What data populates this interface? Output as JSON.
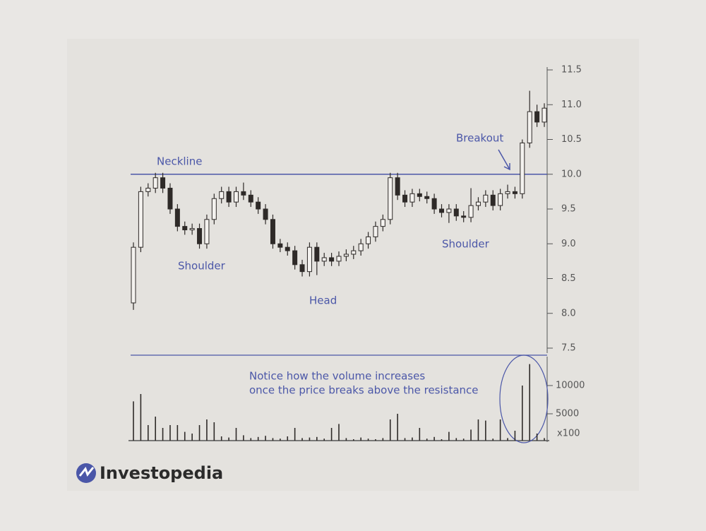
{
  "chart_data": {
    "type": "candlestick",
    "series": {
      "open": [
        8.15,
        8.95,
        9.75,
        9.8,
        9.95,
        9.8,
        9.5,
        9.25,
        9.2,
        9.22,
        9.0,
        9.35,
        9.65,
        9.75,
        9.6,
        9.75,
        9.7,
        9.6,
        9.5,
        9.35,
        9.0,
        8.95,
        8.9,
        8.7,
        8.6,
        8.95,
        8.75,
        8.8,
        8.75,
        8.82,
        8.85,
        8.9,
        9.0,
        9.1,
        9.25,
        9.35,
        9.95,
        9.7,
        9.6,
        9.72,
        9.68,
        9.65,
        9.5,
        9.45,
        9.5,
        9.4,
        9.38,
        9.55,
        9.6,
        9.7,
        9.55,
        9.72,
        9.75,
        9.72,
        10.45,
        10.9,
        10.75
      ],
      "high": [
        9.02,
        9.82,
        9.87,
        10.02,
        10.02,
        9.87,
        9.57,
        9.32,
        9.29,
        9.29,
        9.42,
        9.72,
        9.82,
        9.82,
        9.82,
        9.88,
        9.77,
        9.67,
        9.57,
        9.42,
        9.07,
        9.02,
        8.97,
        8.77,
        9.02,
        9.02,
        8.87,
        8.87,
        8.89,
        8.92,
        8.97,
        9.07,
        9.17,
        9.32,
        9.42,
        10.02,
        10.02,
        9.77,
        9.79,
        9.79,
        9.75,
        9.72,
        9.57,
        9.57,
        9.57,
        9.47,
        9.8,
        9.67,
        9.77,
        9.77,
        9.79,
        9.85,
        9.82,
        10.5,
        11.2,
        11.0,
        11.02
      ],
      "low": [
        8.05,
        8.88,
        9.68,
        9.73,
        9.73,
        9.43,
        9.18,
        9.13,
        9.13,
        8.93,
        8.93,
        9.28,
        9.58,
        9.53,
        9.53,
        9.63,
        9.53,
        9.43,
        9.28,
        8.93,
        8.88,
        8.83,
        8.63,
        8.53,
        8.53,
        8.55,
        8.68,
        8.68,
        8.68,
        8.75,
        8.78,
        8.83,
        8.93,
        9.03,
        9.18,
        9.28,
        9.63,
        9.53,
        9.53,
        9.61,
        9.58,
        9.43,
        9.38,
        9.3,
        9.33,
        9.31,
        9.31,
        9.48,
        9.53,
        9.48,
        9.48,
        9.65,
        9.65,
        9.65,
        10.38,
        10.68,
        10.68
      ],
      "close": [
        8.95,
        9.75,
        9.8,
        9.95,
        9.8,
        9.5,
        9.25,
        9.2,
        9.22,
        9.0,
        9.35,
        9.65,
        9.75,
        9.6,
        9.75,
        9.7,
        9.6,
        9.5,
        9.35,
        9.0,
        8.95,
        8.9,
        8.7,
        8.6,
        8.95,
        8.75,
        8.8,
        8.75,
        8.82,
        8.85,
        8.9,
        9.0,
        9.1,
        9.25,
        9.35,
        9.95,
        9.7,
        9.6,
        9.72,
        9.68,
        9.65,
        9.5,
        9.45,
        9.5,
        9.4,
        9.38,
        9.55,
        9.6,
        9.7,
        9.55,
        9.72,
        9.75,
        9.72,
        10.45,
        10.9,
        10.75,
        10.95
      ],
      "volume": [
        7200,
        8500,
        3000,
        4500,
        2500,
        3000,
        3000,
        1800,
        1500,
        3000,
        4000,
        3500,
        1000,
        800,
        2500,
        1200,
        700,
        900,
        1100,
        700,
        600,
        1000,
        2500,
        700,
        800,
        900,
        600,
        2500,
        3200,
        700,
        500,
        800,
        600,
        500,
        700,
        4000,
        5000,
        700,
        800,
        2500,
        600,
        900,
        500,
        1800,
        700,
        600,
        2200,
        4000,
        3800,
        600,
        4000,
        700,
        2000,
        10000,
        13800,
        1500,
        700
      ]
    },
    "ylim": [
      7.5,
      11.5
    ],
    "yticks": [
      7.5,
      {
        "value": 8,
        "label": "8.0"
      },
      8.5,
      {
        "value": 9,
        "label": "9.0"
      },
      9.5,
      {
        "value": 10,
        "label": "10.0"
      },
      10.5,
      {
        "value": 11,
        "label": "11.0"
      },
      11.5
    ],
    "y2lim": [
      0,
      15000
    ],
    "y2ticks": [
      5000,
      10000
    ],
    "y2_unit": "x100",
    "neckline": {
      "label": "Neckline",
      "value": 10
    },
    "annotations": [
      "Shoulder",
      "Head",
      "Shoulder",
      "Breakout"
    ],
    "note": [
      "Notice how the volume increases",
      "once the price breaks above the resistance"
    ],
    "line_color": "#4b57a8",
    "candle_color": "#2e2a28"
  },
  "logo": "Investopedia"
}
